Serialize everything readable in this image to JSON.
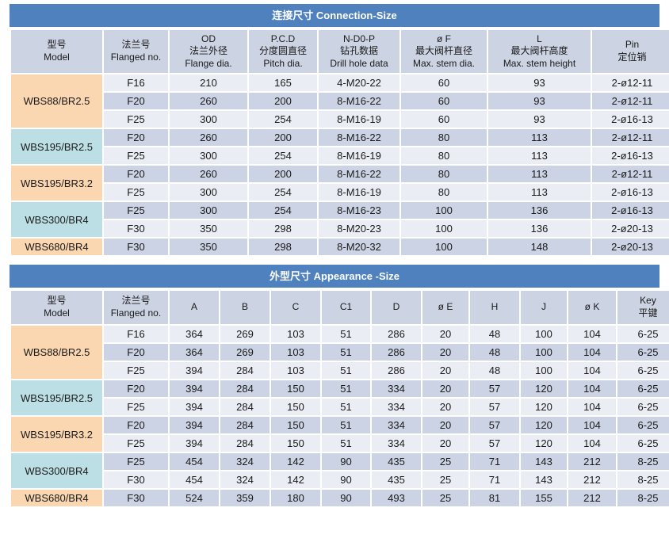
{
  "colors": {
    "banner": "#4E81BD",
    "banner_text": "#ffffff",
    "header_bg": "#CCD3E3",
    "row_light": "#EAEDF4",
    "row_dark": "#CBD3E4",
    "model_peach": "#FBD7B1",
    "model_cyan": "#BCDFE5",
    "text": "#1a1a1a"
  },
  "tables": [
    {
      "title": "连接尺寸 Connection-Size",
      "columns": [
        [
          "型号",
          "Model"
        ],
        [
          "法兰号",
          "Flanged no."
        ],
        [
          "OD",
          "法兰外径",
          "Flange dia."
        ],
        [
          "P.C.D",
          "分度圆直径",
          "Pitch dia."
        ],
        [
          "N-D0-P",
          "钻孔数据",
          "Drill hole data"
        ],
        [
          "ø F",
          "最大阀杆直径",
          "Max. stem dia."
        ],
        [
          "L",
          "最大阀杆高度",
          "Max. stem height"
        ],
        [
          "Pin",
          "定位销"
        ]
      ],
      "groups": [
        {
          "model": "WBS88/BR2.5",
          "tint": "peach",
          "rows": [
            [
              "F16",
              "210",
              "165",
              "4-M20-22",
              "60",
              "93",
              "2-ø12-11"
            ],
            [
              "F20",
              "260",
              "200",
              "8-M16-22",
              "60",
              "93",
              "2-ø12-11"
            ],
            [
              "F25",
              "300",
              "254",
              "8-M16-19",
              "60",
              "93",
              "2-ø16-13"
            ]
          ]
        },
        {
          "model": "WBS195/BR2.5",
          "tint": "cyan",
          "rows": [
            [
              "F20",
              "260",
              "200",
              "8-M16-22",
              "80",
              "113",
              "2-ø12-11"
            ],
            [
              "F25",
              "300",
              "254",
              "8-M16-19",
              "80",
              "113",
              "2-ø16-13"
            ]
          ]
        },
        {
          "model": "WBS195/BR3.2",
          "tint": "peach",
          "rows": [
            [
              "F20",
              "260",
              "200",
              "8-M16-22",
              "80",
              "113",
              "2-ø12-11"
            ],
            [
              "F25",
              "300",
              "254",
              "8-M16-19",
              "80",
              "113",
              "2-ø16-13"
            ]
          ]
        },
        {
          "model": "WBS300/BR4",
          "tint": "cyan",
          "rows": [
            [
              "F25",
              "300",
              "254",
              "8-M16-23",
              "100",
              "136",
              "2-ø16-13"
            ],
            [
              "F30",
              "350",
              "298",
              "8-M20-23",
              "100",
              "136",
              "2-ø20-13"
            ]
          ]
        },
        {
          "model": "WBS680/BR4",
          "tint": "peach",
          "rows": [
            [
              "F30",
              "350",
              "298",
              "8-M20-32",
              "100",
              "148",
              "2-ø20-13"
            ]
          ]
        }
      ]
    },
    {
      "title": "外型尺寸 Appearance -Size",
      "columns": [
        [
          "型号",
          "Model"
        ],
        [
          "法兰号",
          "Flanged no."
        ],
        [
          "A"
        ],
        [
          "B"
        ],
        [
          "C"
        ],
        [
          "C1"
        ],
        [
          "D"
        ],
        [
          "ø E"
        ],
        [
          "H"
        ],
        [
          "J"
        ],
        [
          "ø K"
        ],
        [
          "Key",
          "平键"
        ]
      ],
      "groups": [
        {
          "model": "WBS88/BR2.5",
          "tint": "peach",
          "rows": [
            [
              "F16",
              "364",
              "269",
              "103",
              "51",
              "286",
              "20",
              "48",
              "100",
              "104",
              "6-25"
            ],
            [
              "F20",
              "364",
              "269",
              "103",
              "51",
              "286",
              "20",
              "48",
              "100",
              "104",
              "6-25"
            ],
            [
              "F25",
              "394",
              "284",
              "103",
              "51",
              "286",
              "20",
              "48",
              "100",
              "104",
              "6-25"
            ]
          ]
        },
        {
          "model": "WBS195/BR2.5",
          "tint": "cyan",
          "rows": [
            [
              "F20",
              "394",
              "284",
              "150",
              "51",
              "334",
              "20",
              "57",
              "120",
              "104",
              "6-25"
            ],
            [
              "F25",
              "394",
              "284",
              "150",
              "51",
              "334",
              "20",
              "57",
              "120",
              "104",
              "6-25"
            ]
          ]
        },
        {
          "model": "WBS195/BR3.2",
          "tint": "peach",
          "rows": [
            [
              "F20",
              "394",
              "284",
              "150",
              "51",
              "334",
              "20",
              "57",
              "120",
              "104",
              "6-25"
            ],
            [
              "F25",
              "394",
              "284",
              "150",
              "51",
              "334",
              "20",
              "57",
              "120",
              "104",
              "6-25"
            ]
          ]
        },
        {
          "model": "WBS300/BR4",
          "tint": "cyan",
          "rows": [
            [
              "F25",
              "454",
              "324",
              "142",
              "90",
              "435",
              "25",
              "71",
              "143",
              "212",
              "8-25"
            ],
            [
              "F30",
              "454",
              "324",
              "142",
              "90",
              "435",
              "25",
              "71",
              "143",
              "212",
              "8-25"
            ]
          ]
        },
        {
          "model": "WBS680/BR4",
          "tint": "peach",
          "rows": [
            [
              "F30",
              "524",
              "359",
              "180",
              "90",
              "493",
              "25",
              "81",
              "155",
              "212",
              "8-25"
            ]
          ]
        }
      ]
    }
  ]
}
